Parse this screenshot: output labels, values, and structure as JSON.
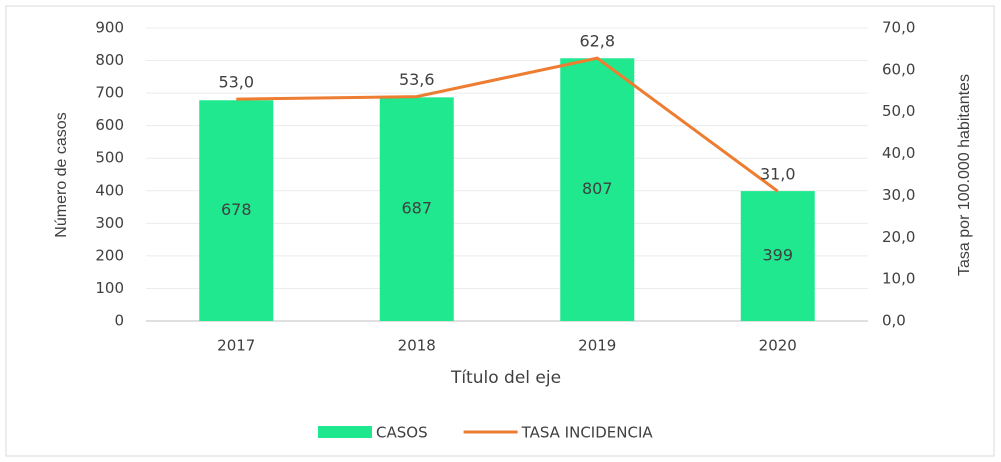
{
  "chart_data": {
    "type": "bar-line",
    "categories": [
      "2017",
      "2018",
      "2019",
      "2020"
    ],
    "series": [
      {
        "name": "CASOS",
        "type": "bar",
        "color": "#1fe88f",
        "values": [
          678,
          687,
          807,
          399
        ]
      },
      {
        "name": "TASA INCIDENCIA",
        "type": "line",
        "axis": "y2",
        "color": "#ed7d31",
        "values": [
          53.0,
          53.6,
          62.8,
          31.0
        ],
        "value_labels": [
          "53,0",
          "53,6",
          "62,8",
          "31,0"
        ]
      }
    ],
    "ylim": [
      0,
      900
    ],
    "yticks": [
      0,
      100,
      200,
      300,
      400,
      500,
      600,
      700,
      800,
      900
    ],
    "y2lim": [
      0,
      70
    ],
    "y2ticks": [
      {
        "value": 0,
        "label": "0,0"
      },
      {
        "value": 10,
        "label": "10,0"
      },
      {
        "value": 20,
        "label": "20,0"
      },
      {
        "value": 30,
        "label": "30,0"
      },
      {
        "value": 40,
        "label": "40,0"
      },
      {
        "value": 50,
        "label": "50,0"
      },
      {
        "value": 60,
        "label": "60,0"
      },
      {
        "value": 70,
        "label": "70,0"
      }
    ],
    "ylabel": "Número de casos",
    "y2label": "Tasa por 100.000 habitantes",
    "xlabel": "Título del eje",
    "grid": true,
    "legend": "bottom"
  }
}
